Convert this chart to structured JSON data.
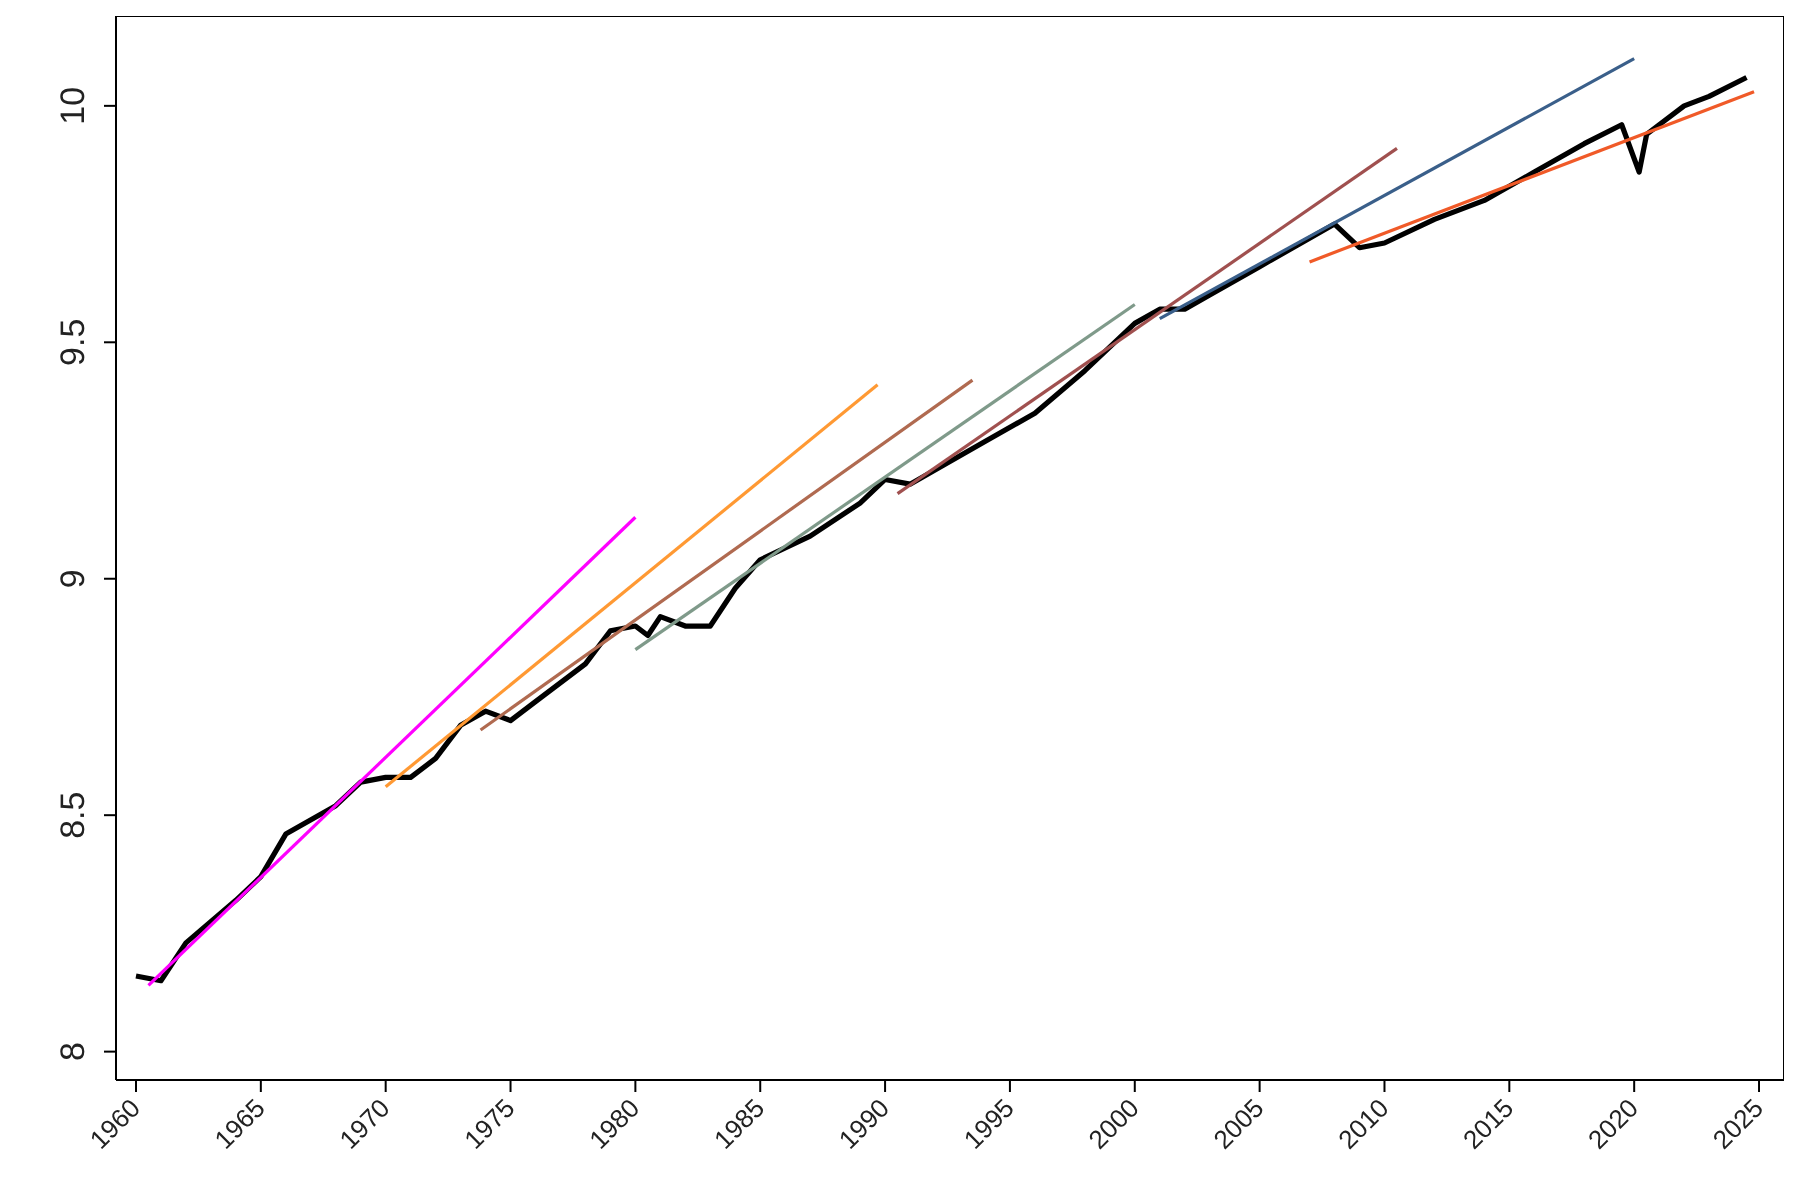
{
  "chart_data": {
    "type": "line",
    "xlim": [
      1959.2,
      2026
    ],
    "ylim": [
      7.94,
      10.19
    ],
    "xticks": [
      1960,
      1965,
      1970,
      1975,
      1980,
      1985,
      1990,
      1995,
      2000,
      2005,
      2010,
      2015,
      2020,
      2025
    ],
    "yticks": [
      8,
      {
        "value": 8.5,
        "label": "8.5"
      },
      9,
      {
        "value": 9.5,
        "label": "9.5"
      },
      10
    ],
    "grid": false,
    "legend": false,
    "marker": "none",
    "line_style": "solid",
    "series": [
      {
        "color": "#000000",
        "x": [
          1960,
          1961,
          1962,
          1964,
          1965,
          1966,
          1968,
          1969,
          1970,
          1971,
          1972,
          1973,
          1974,
          1975,
          1976,
          1978,
          1979,
          1980,
          1980.5,
          1981,
          1982,
          1983,
          1984,
          1985,
          1987,
          1989,
          1990,
          1991,
          1992,
          1994,
          1996,
          1998,
          2000,
          2001,
          2002,
          2003,
          2005,
          2007,
          2008,
          2009,
          2010,
          2012,
          2014,
          2016,
          2018,
          2019.5,
          2020.2,
          2020.5,
          2022,
          2023,
          2024.5
        ],
        "values": [
          8.16,
          8.15,
          8.23,
          8.32,
          8.37,
          8.46,
          8.52,
          8.57,
          8.58,
          8.58,
          8.62,
          8.69,
          8.72,
          8.7,
          8.74,
          8.82,
          8.89,
          8.9,
          8.88,
          8.92,
          8.9,
          8.9,
          8.98,
          9.04,
          9.09,
          9.16,
          9.21,
          9.2,
          9.23,
          9.29,
          9.35,
          9.44,
          9.54,
          9.57,
          9.57,
          9.6,
          9.66,
          9.72,
          9.75,
          9.7,
          9.71,
          9.76,
          9.8,
          9.86,
          9.92,
          9.96,
          9.86,
          9.94,
          10,
          10.02,
          10.06
        ]
      },
      {
        "color": "#ff00ff",
        "x": [
          1960.5,
          1980
        ],
        "values": [
          8.14,
          9.13
        ]
      },
      {
        "color": "#ff9933",
        "x": [
          1970,
          1989.7
        ],
        "values": [
          8.56,
          9.41
        ]
      },
      {
        "color": "#b06a50",
        "x": [
          1973.8,
          1993.5
        ],
        "values": [
          8.68,
          9.42
        ]
      },
      {
        "color": "#7f9a8a",
        "x": [
          1980,
          2000
        ],
        "values": [
          8.85,
          9.58
        ]
      },
      {
        "color": "#a0504f",
        "x": [
          1990.5,
          2010.5
        ],
        "values": [
          9.18,
          9.91
        ]
      },
      {
        "color": "#3a5f8a",
        "x": [
          2001,
          2020
        ],
        "values": [
          9.55,
          10.1
        ]
      },
      {
        "color": "#f05a28",
        "x": [
          2007,
          2024.8
        ],
        "values": [
          9.67,
          10.03
        ]
      }
    ]
  }
}
